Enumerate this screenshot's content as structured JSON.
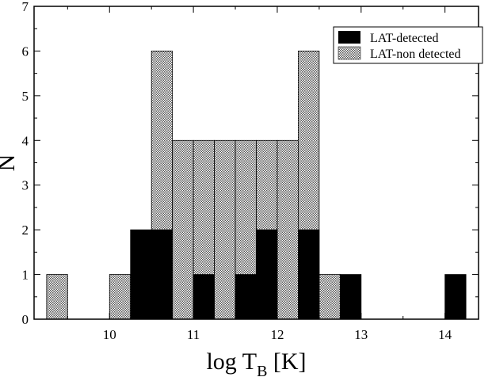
{
  "chart_data": {
    "type": "bar",
    "subtype": "histogram",
    "title": "",
    "xlabel_main": "log T",
    "xlabel_sub": "B",
    "xlabel_unit": " [K]",
    "ylabel": "N",
    "xlim": [
      9.1,
      14.4
    ],
    "ylim": [
      0,
      7
    ],
    "xticks": [
      10,
      11,
      12,
      13,
      14
    ],
    "yticks": [
      0,
      1,
      2,
      3,
      4,
      5,
      6,
      7
    ],
    "bin_width": 0.25,
    "grid": false,
    "legend_position": "top-right",
    "series": [
      {
        "name": "LAT-non detected",
        "fill": "dotted-gray",
        "bins": [
          {
            "x0": 9.25,
            "value": 1
          },
          {
            "x0": 10.0,
            "value": 1
          },
          {
            "x0": 10.5,
            "value": 6
          },
          {
            "x0": 10.75,
            "value": 4
          },
          {
            "x0": 11.0,
            "value": 4
          },
          {
            "x0": 11.25,
            "value": 4
          },
          {
            "x0": 11.5,
            "value": 4
          },
          {
            "x0": 11.75,
            "value": 4
          },
          {
            "x0": 12.0,
            "value": 4
          },
          {
            "x0": 12.25,
            "value": 6
          },
          {
            "x0": 12.5,
            "value": 1
          }
        ]
      },
      {
        "name": "LAT-detected",
        "fill": "#000000",
        "bins": [
          {
            "x0": 10.25,
            "value": 2
          },
          {
            "x0": 10.5,
            "value": 2
          },
          {
            "x0": 11.0,
            "value": 1
          },
          {
            "x0": 11.5,
            "value": 1
          },
          {
            "x0": 11.75,
            "value": 2
          },
          {
            "x0": 12.25,
            "value": 2
          },
          {
            "x0": 12.75,
            "value": 1
          },
          {
            "x0": 14.0,
            "value": 1
          }
        ]
      }
    ]
  },
  "colors": {
    "detected": "#000000",
    "non_detected_dot": "#4a4a4a",
    "non_detected_bg": "#ffffff",
    "axis": "#000000"
  }
}
